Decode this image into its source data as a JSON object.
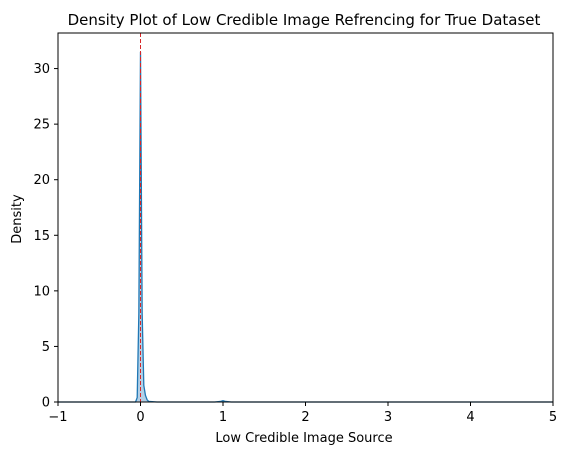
{
  "chart_data": {
    "type": "area",
    "title": "Density Plot of Low Credible Image Refrencing for True Dataset",
    "xlabel": "Low Credible Image Source",
    "ylabel": "Density",
    "xlim": [
      -1,
      5
    ],
    "ylim": [
      0,
      33.2
    ],
    "xticks": [
      -1,
      0,
      1,
      2,
      3,
      4,
      5
    ],
    "yticks": [
      0,
      5,
      10,
      15,
      20,
      25,
      30
    ],
    "grid": false,
    "series": [
      {
        "x": [
          -1,
          -0.06,
          -0.04,
          -0.02,
          0,
          0.02,
          0.04,
          0.06,
          0.08,
          0.1,
          0.2,
          0.5,
          0.9,
          0.97,
          1.0,
          1.03,
          1.1,
          2,
          3,
          4,
          5
        ],
        "y": [
          0,
          0,
          0.4,
          8.0,
          31.5,
          8.0,
          1.5,
          0.6,
          0.2,
          0.05,
          0,
          0,
          0,
          0.05,
          0.12,
          0.05,
          0,
          0,
          0,
          0,
          0
        ]
      }
    ],
    "reference_line": {
      "x": 0,
      "color": "#d62728",
      "style": "dashed"
    },
    "colors": {
      "fill": "#a6c8e3",
      "line": "#1f77b4",
      "reference": "#d62728"
    }
  }
}
